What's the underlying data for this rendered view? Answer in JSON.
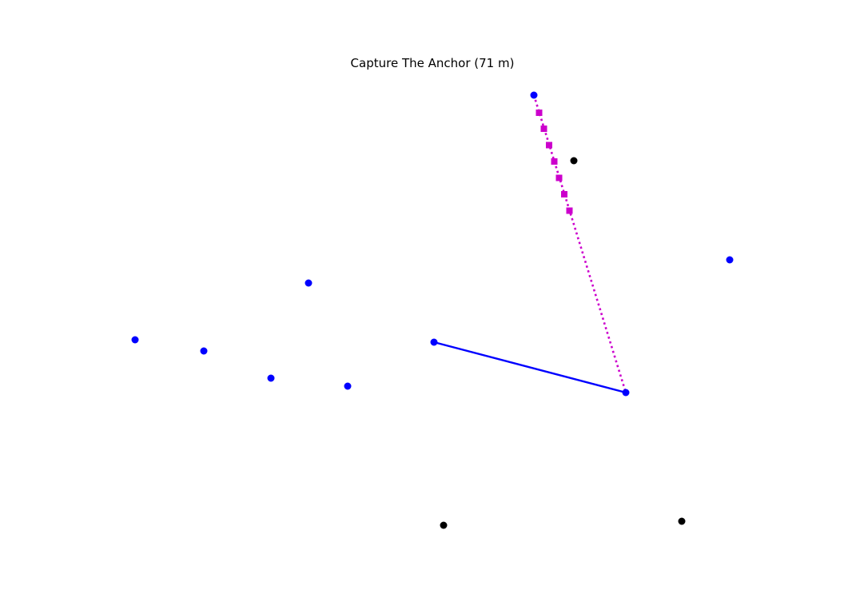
{
  "game": {
    "title": "Capture The Anchor (71 m)"
  },
  "colors": {
    "blue_node": "#0000ff",
    "black_node": "#000000",
    "path_line": "#0000ff",
    "trajectory": "#cc00cc",
    "background": "#ffffff"
  }
}
